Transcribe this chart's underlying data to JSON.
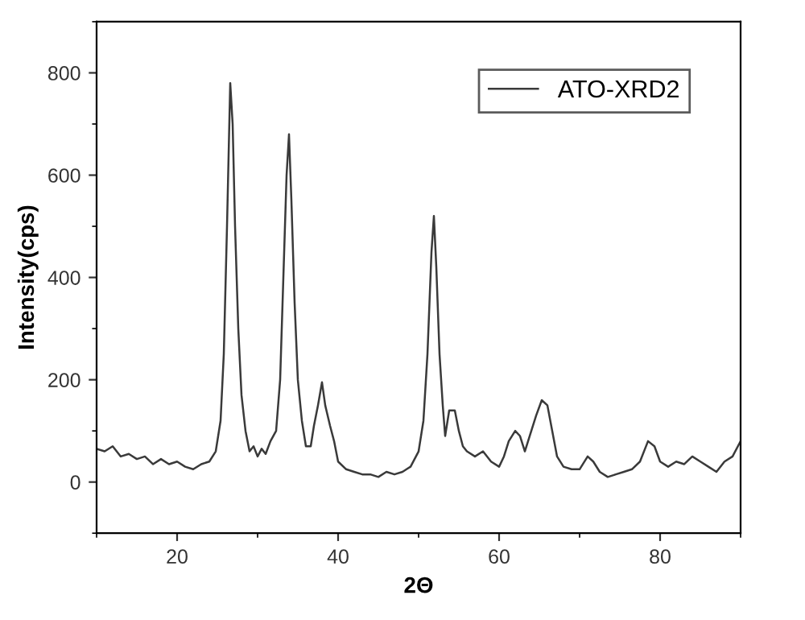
{
  "chart_data": {
    "type": "line",
    "xlabel": "2Θ",
    "ylabel": "Intensity(cps)",
    "xlim": [
      10,
      90
    ],
    "xticks": [
      20,
      40,
      60,
      80
    ],
    "ylim": [
      -100,
      900
    ],
    "yticks": [
      0,
      200,
      400,
      600,
      800
    ],
    "grid": false,
    "legend": "top right",
    "marker": "none",
    "line_style": "solid",
    "series": [
      {
        "name": "ATO-XRD2",
        "color": "#3a3a3a",
        "x": [
          10,
          11,
          12,
          13,
          14,
          15,
          16,
          17,
          18,
          19,
          20,
          21,
          22,
          23,
          24,
          24.8,
          25.4,
          25.8,
          26.2,
          26.6,
          26.9,
          27.2,
          27.6,
          28,
          28.5,
          29,
          29.5,
          30,
          30.5,
          31,
          31.6,
          32.3,
          32.8,
          33.2,
          33.6,
          33.9,
          34.2,
          34.6,
          35,
          35.5,
          36,
          36.6,
          37,
          37.5,
          38,
          38.4,
          39,
          39.5,
          40,
          41,
          42,
          43,
          44,
          45,
          46,
          47,
          48,
          49,
          49.5,
          50,
          50.6,
          51.1,
          51.6,
          51.9,
          52.2,
          52.6,
          53,
          53.3,
          53.8,
          54.5,
          55,
          55.5,
          56,
          57,
          58,
          59,
          60,
          60.6,
          61.2,
          62,
          62.6,
          63.2,
          64,
          64.6,
          65.3,
          66,
          66.6,
          67.2,
          68,
          69,
          70,
          71,
          71.7,
          72.5,
          73.5,
          74.5,
          75.5,
          76.5,
          77.5,
          78.5,
          79.3,
          80,
          81,
          82,
          83,
          84,
          85,
          86,
          87,
          88,
          89,
          90
        ],
        "values": [
          65,
          60,
          70,
          50,
          55,
          45,
          50,
          35,
          45,
          35,
          40,
          30,
          25,
          35,
          40,
          60,
          120,
          250,
          500,
          780,
          700,
          500,
          300,
          170,
          100,
          60,
          70,
          50,
          65,
          55,
          80,
          100,
          200,
          400,
          600,
          680,
          550,
          350,
          200,
          120,
          70,
          70,
          110,
          150,
          195,
          150,
          110,
          80,
          40,
          25,
          20,
          15,
          15,
          10,
          20,
          15,
          20,
          30,
          45,
          60,
          120,
          250,
          450,
          520,
          420,
          250,
          150,
          90,
          140,
          140,
          100,
          70,
          60,
          50,
          60,
          40,
          30,
          50,
          80,
          100,
          90,
          60,
          100,
          130,
          160,
          150,
          100,
          50,
          30,
          25,
          25,
          50,
          40,
          20,
          10,
          15,
          20,
          25,
          40,
          80,
          70,
          40,
          30,
          40,
          35,
          50,
          40,
          30,
          20,
          40,
          50,
          80
        ]
      }
    ]
  }
}
